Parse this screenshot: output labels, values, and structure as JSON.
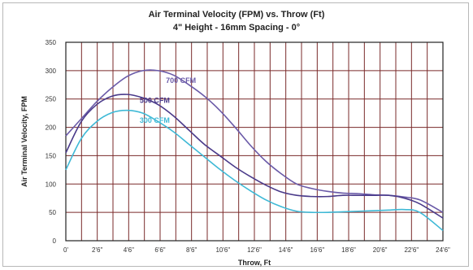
{
  "colors": {
    "background": "#ffffff",
    "grid": "#7a2a2a",
    "border": "#222222",
    "series_700": "#6a5aa8",
    "series_500": "#4a3a8a",
    "series_300": "#3fb9d6"
  },
  "chart_data": {
    "type": "line",
    "title": "Air Terminal Velocity (FPM) vs. Throw (Ft)",
    "subtitle": "4\" Height - 16mm Spacing - 0°",
    "xlabel": "Throw, Ft",
    "ylabel": "Air Terminal Velocity, FPM",
    "x_tick_labels": [
      "0'",
      "2'6\"",
      "4'6\"",
      "6'6\"",
      "8'6\"",
      "10'6\"",
      "12'6\"",
      "14'6\"",
      "16'6\"",
      "18'6\"",
      "20'6\"",
      "22'6\"",
      "24'6\""
    ],
    "y_ticks": [
      0,
      50,
      100,
      150,
      200,
      250,
      300,
      350
    ],
    "ylim": [
      0,
      350
    ],
    "xlim": [
      0,
      24.5
    ],
    "grid": true,
    "series": [
      {
        "name": "700 CFM",
        "color": "#6a5aa8",
        "x": [
          0,
          1,
          2,
          3,
          4,
          5,
          6,
          7,
          8,
          9,
          10,
          11,
          12,
          13,
          14,
          15,
          16,
          17,
          18,
          19,
          20,
          21,
          22,
          23,
          24.5
        ],
        "y": [
          185,
          215,
          245,
          270,
          290,
          300,
          300,
          292,
          275,
          255,
          230,
          200,
          168,
          140,
          118,
          100,
          92,
          87,
          84,
          83,
          81,
          80,
          77,
          72,
          50
        ]
      },
      {
        "name": "500 CFM",
        "color": "#4a3a8a",
        "x": [
          0,
          1,
          2,
          3,
          4,
          5,
          6,
          7,
          8,
          9,
          10,
          11,
          12,
          13,
          14,
          15,
          16,
          17,
          18,
          19,
          20,
          21,
          22,
          23,
          24.5
        ],
        "y": [
          155,
          210,
          240,
          255,
          258,
          252,
          240,
          220,
          195,
          170,
          150,
          130,
          113,
          98,
          86,
          80,
          78,
          78,
          80,
          80,
          80,
          80,
          75,
          65,
          40
        ]
      },
      {
        "name": "300 CFM",
        "color": "#3fb9d6",
        "x": [
          0,
          1,
          2,
          3,
          4,
          5,
          6,
          7,
          8,
          9,
          10,
          11,
          12,
          13,
          14,
          15,
          16,
          17,
          18,
          19,
          20,
          21,
          22,
          23,
          24.5
        ],
        "y": [
          125,
          180,
          210,
          226,
          230,
          225,
          210,
          192,
          170,
          148,
          126,
          106,
          88,
          72,
          60,
          52,
          50,
          50,
          51,
          52,
          53,
          54,
          55,
          50,
          18
        ]
      }
    ],
    "annotations": [
      {
        "text": "700 CFM",
        "x": 6.5,
        "y": 278,
        "color": "#6a5aa8"
      },
      {
        "text": "500 CFM",
        "x": 4.8,
        "y": 243,
        "color": "#4a3a8a"
      },
      {
        "text": "300 CFM",
        "x": 4.8,
        "y": 208,
        "color": "#3fb9d6"
      }
    ]
  }
}
